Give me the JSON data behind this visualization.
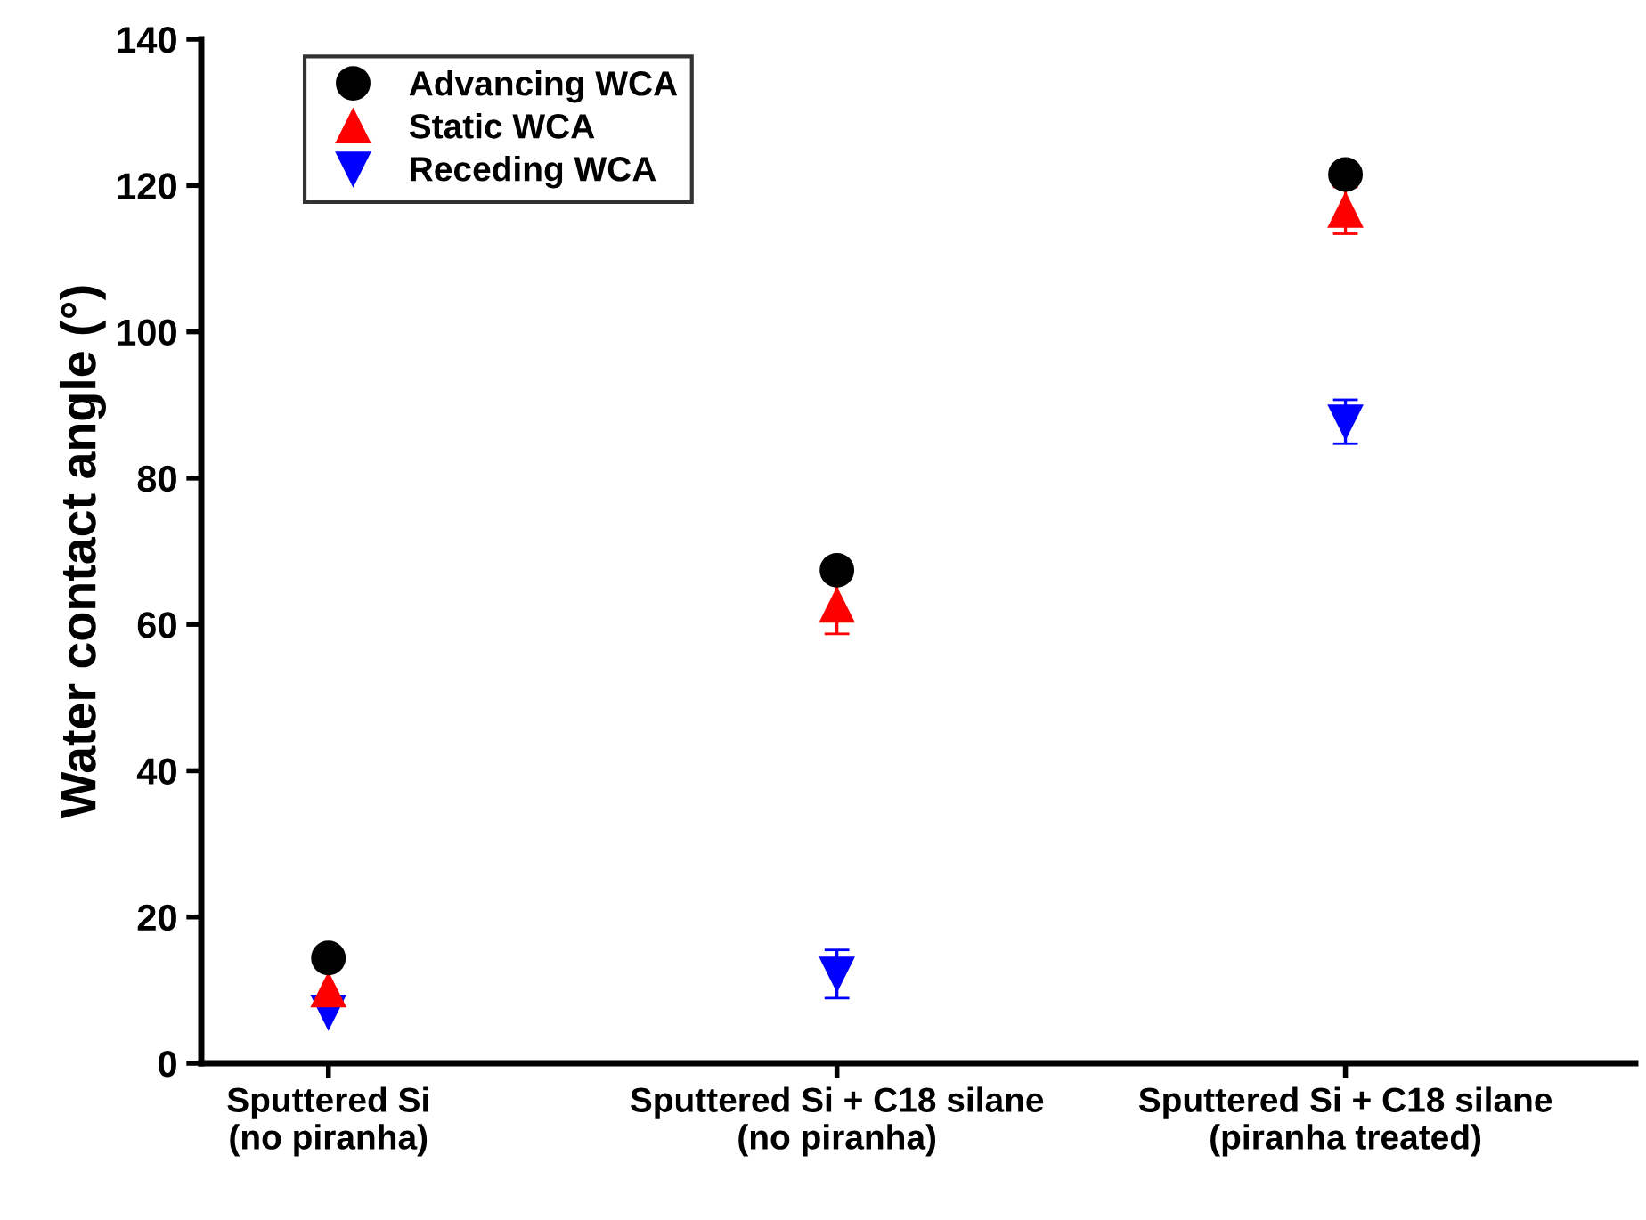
{
  "chart_data": {
    "type": "scatter",
    "ylabel": "Water contact angle (°)",
    "categories": [
      "Sputtered Si\n(no piranha)",
      "Sputtered Si + C18 silane\n(no piranha)",
      "Sputtered Si + C18 silane\n(piranha treated)"
    ],
    "series": [
      {
        "name": "Advancing WCA",
        "color": "#000000",
        "marker": "circle",
        "values": [
          14.4,
          67.4,
          121.5
        ]
      },
      {
        "name": "Static WCA",
        "color": "#ff0000",
        "marker": "triangle",
        "values": [
          10,
          62.6,
          116.6
        ],
        "errors": [
          null,
          3.9,
          3.2
        ]
      },
      {
        "name": "Receding WCA",
        "color": "#0000ff",
        "marker": "triangle_down",
        "values": [
          7,
          12.2,
          87.7
        ],
        "errors": [
          null,
          3.3,
          3
        ]
      }
    ],
    "ylim": [
      0,
      140
    ],
    "yticks": [
      0,
      20,
      40,
      60,
      80,
      100,
      120,
      140
    ],
    "grid": false,
    "legend": "top left"
  }
}
